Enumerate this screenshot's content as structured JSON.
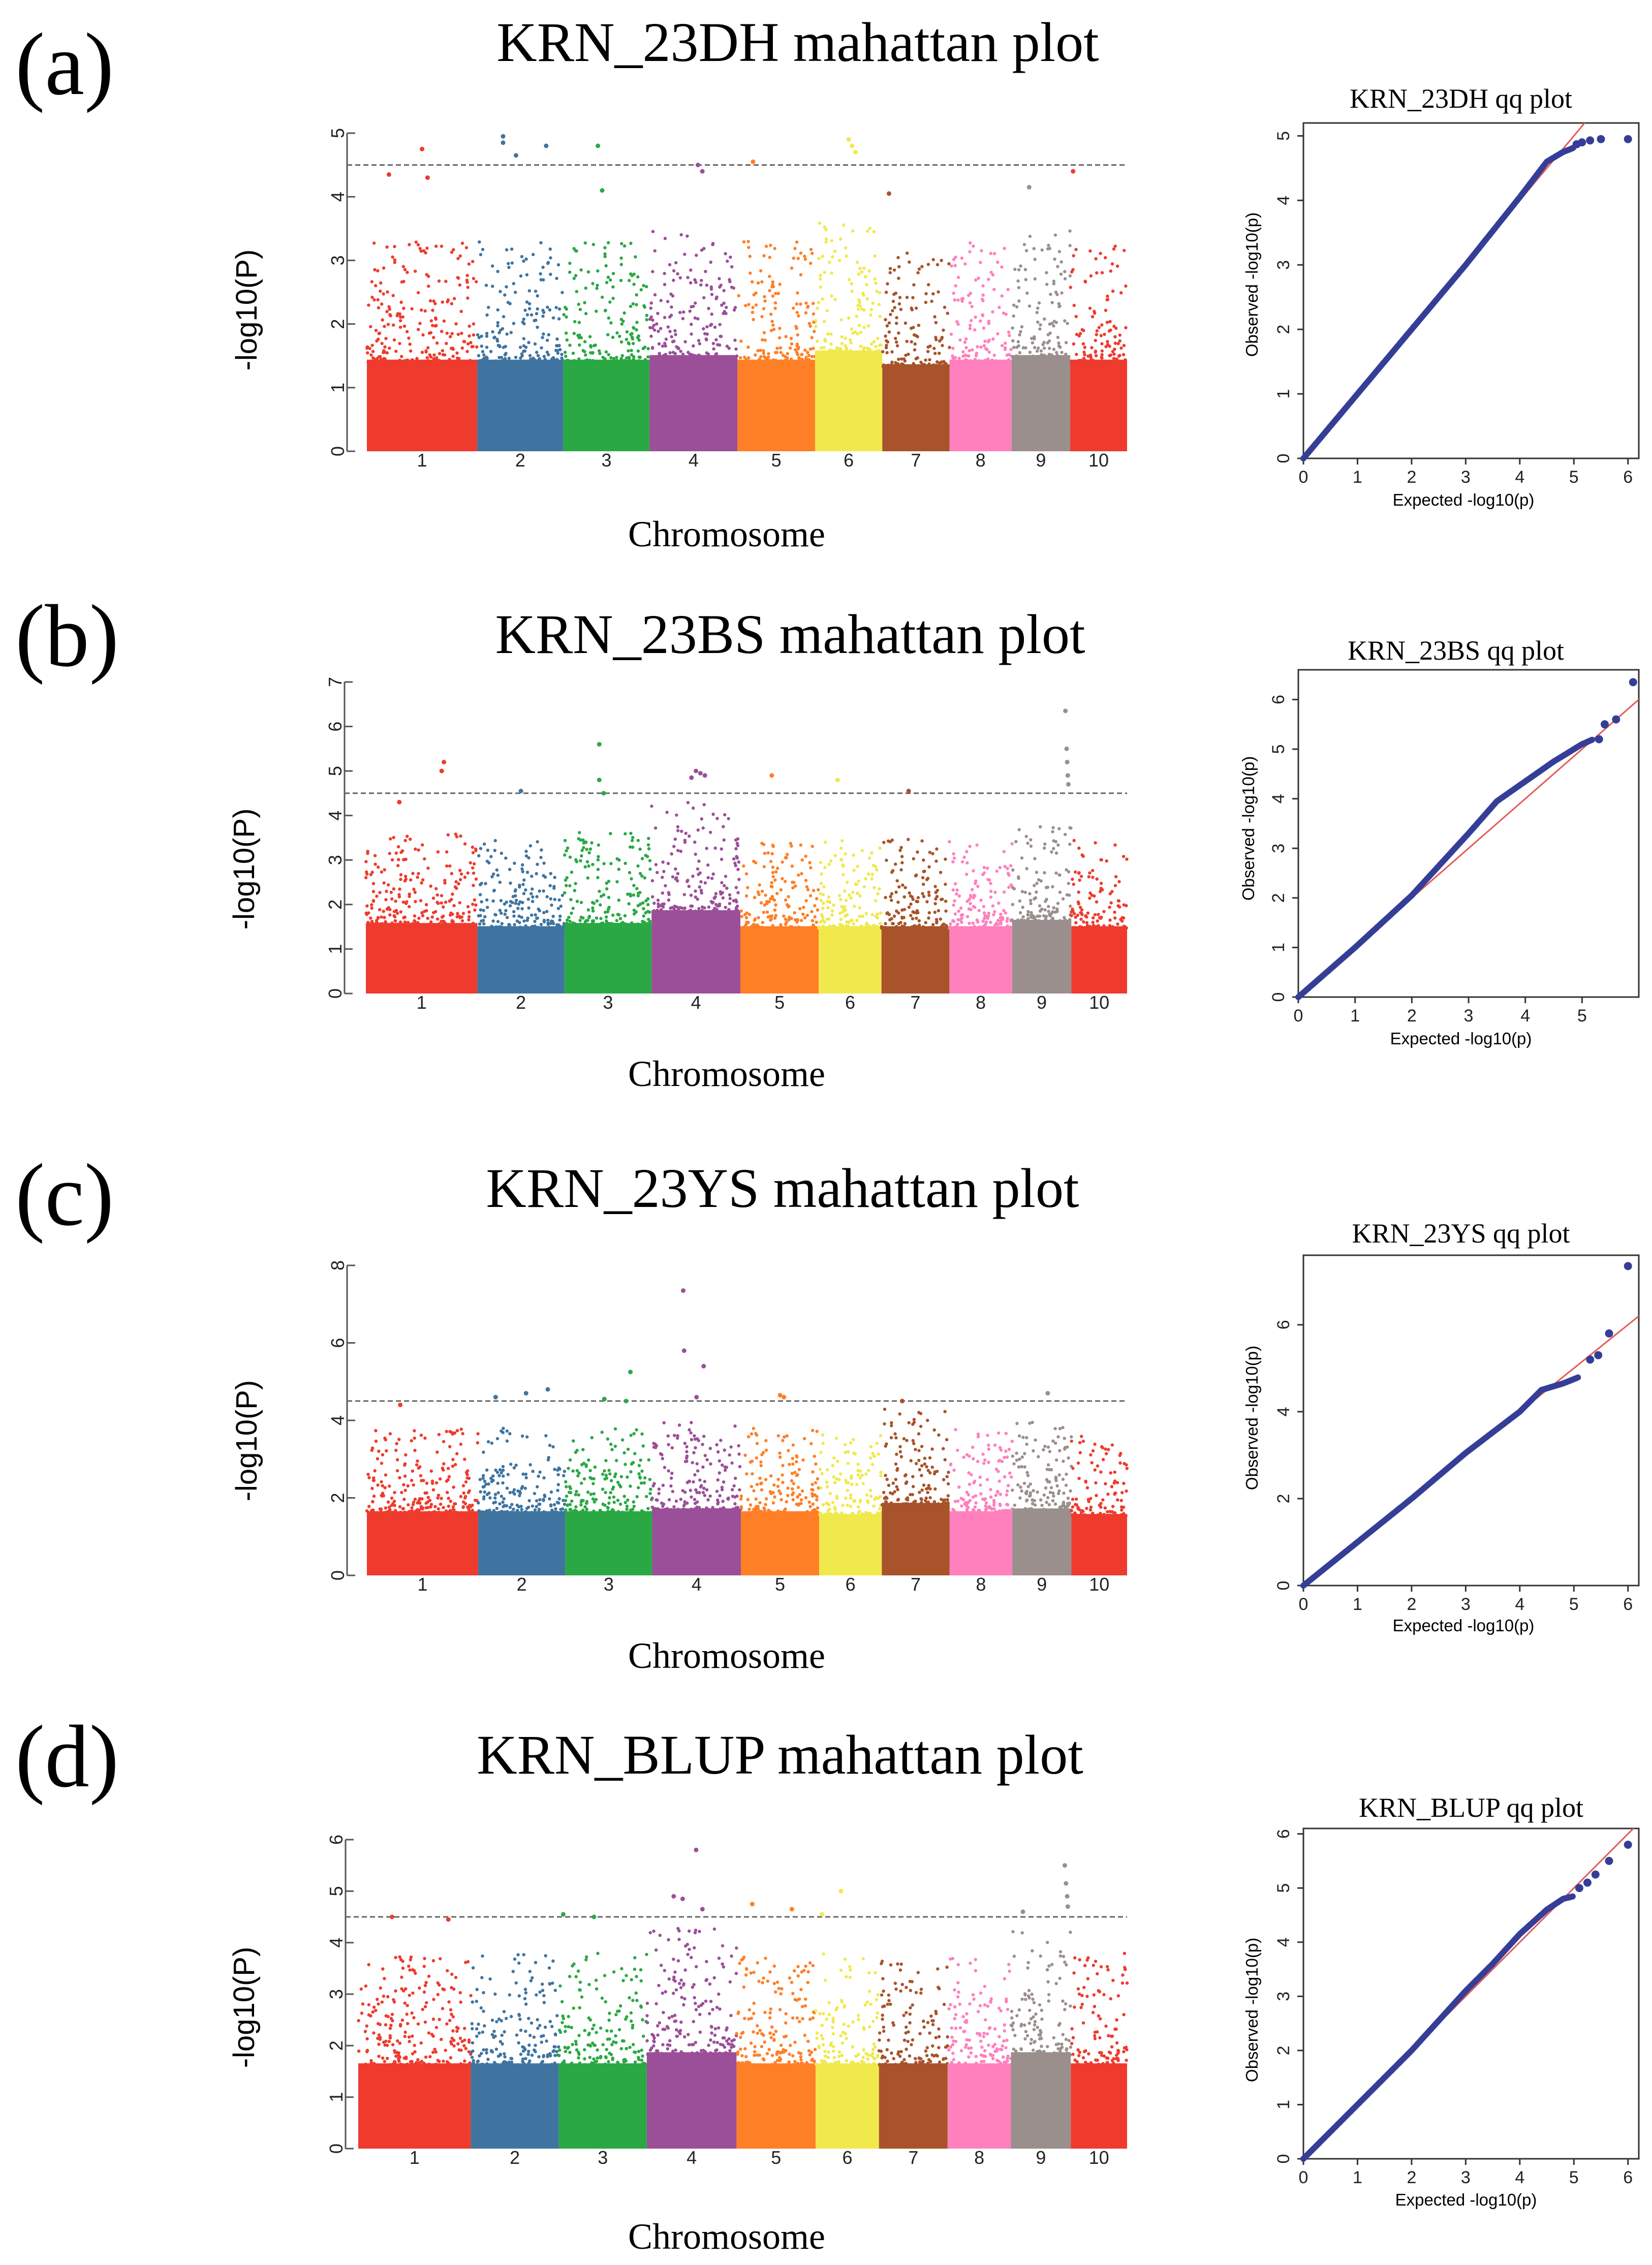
{
  "figure": {
    "panel_labels": [
      "(a)",
      "(b)",
      "(c)",
      "(d)"
    ],
    "threshold": 4.5
  },
  "colors": {
    "chromosomes": [
      "#ee3b2e",
      "#3f74a0",
      "#2aa844",
      "#9b4f98",
      "#ff7f27",
      "#f0e94c",
      "#a8532a",
      "#ff80bd",
      "#9b8f8e",
      "#ee3b2e"
    ],
    "qq_point": "#353e97",
    "qq_line": "#e35a5a",
    "threshold_line": "#666666",
    "axis": "#555555"
  },
  "chart_data": [
    {
      "type": "scatter",
      "id": "a-manhattan",
      "title": "KRN_23DH mahattan plot",
      "xlabel": "Chromosome",
      "ylabel": "-log10(P)",
      "categories": [
        "1",
        "2",
        "3",
        "4",
        "5",
        "6",
        "7",
        "8",
        "9",
        "10"
      ],
      "chrom_widths": [
        1.28,
        1.0,
        1.0,
        1.02,
        0.9,
        0.78,
        0.78,
        0.72,
        0.68,
        0.66
      ],
      "ylim": [
        0,
        5
      ],
      "yticks": [
        0,
        1,
        2,
        3,
        4,
        5
      ],
      "threshold": 4.5,
      "bulk_top": [
        2.0,
        2.0,
        2.0,
        2.1,
        2.0,
        2.2,
        1.9,
        2.0,
        2.1,
        2.0
      ],
      "peaks": [
        {
          "chr": "1",
          "pos": 0.5,
          "value": 4.75
        },
        {
          "chr": "1",
          "pos": 0.2,
          "value": 4.35
        },
        {
          "chr": "1",
          "pos": 0.55,
          "value": 4.3
        },
        {
          "chr": "2",
          "pos": 0.3,
          "value": 4.95
        },
        {
          "chr": "2",
          "pos": 0.3,
          "value": 4.85
        },
        {
          "chr": "2",
          "pos": 0.45,
          "value": 4.65
        },
        {
          "chr": "2",
          "pos": 0.8,
          "value": 4.8
        },
        {
          "chr": "3",
          "pos": 0.4,
          "value": 4.8
        },
        {
          "chr": "3",
          "pos": 0.45,
          "value": 4.1
        },
        {
          "chr": "4",
          "pos": 0.55,
          "value": 4.5
        },
        {
          "chr": "4",
          "pos": 0.6,
          "value": 4.4
        },
        {
          "chr": "5",
          "pos": 0.2,
          "value": 4.55
        },
        {
          "chr": "6",
          "pos": 0.5,
          "value": 4.9
        },
        {
          "chr": "6",
          "pos": 0.55,
          "value": 4.8
        },
        {
          "chr": "6",
          "pos": 0.6,
          "value": 4.7
        },
        {
          "chr": "7",
          "pos": 0.1,
          "value": 4.05
        },
        {
          "chr": "9",
          "pos": 0.3,
          "value": 4.15
        },
        {
          "chr": "10",
          "pos": 0.05,
          "value": 4.4
        }
      ]
    },
    {
      "type": "scatter",
      "id": "a-qq",
      "title": "KRN_23DH qq plot",
      "xlabel": "Expected -log10(p)",
      "ylabel": "Observed -log10(p)",
      "xlim": [
        0,
        6.2
      ],
      "ylim": [
        0,
        5.2
      ],
      "xticks": [
        0,
        1,
        2,
        3,
        4,
        5,
        6
      ],
      "yticks": [
        0,
        1,
        2,
        3,
        4,
        5
      ],
      "curve": [
        [
          0,
          0
        ],
        [
          1,
          1
        ],
        [
          2,
          2
        ],
        [
          3,
          3
        ],
        [
          4,
          4.05
        ],
        [
          4.5,
          4.6
        ],
        [
          4.8,
          4.75
        ],
        [
          4.95,
          4.8
        ],
        [
          5.0,
          4.82
        ]
      ],
      "tail_points": [
        [
          5.05,
          4.87
        ],
        [
          5.15,
          4.9
        ],
        [
          5.3,
          4.93
        ],
        [
          5.5,
          4.95
        ],
        [
          6.0,
          4.95
        ]
      ]
    },
    {
      "type": "scatter",
      "id": "b-manhattan",
      "title": "KRN_23BS mahattan plot",
      "xlabel": "Chromosome",
      "ylabel": "-log10(P)",
      "categories": [
        "1",
        "2",
        "3",
        "4",
        "5",
        "6",
        "7",
        "8",
        "9",
        "10"
      ],
      "chrom_widths": [
        1.28,
        1.0,
        1.0,
        1.02,
        0.9,
        0.72,
        0.78,
        0.72,
        0.68,
        0.64
      ],
      "ylim": [
        0,
        7
      ],
      "yticks": [
        0,
        1,
        2,
        3,
        4,
        5,
        6,
        7
      ],
      "threshold": 4.5,
      "bulk_top": [
        2.2,
        2.1,
        2.2,
        2.6,
        2.1,
        2.1,
        2.1,
        2.1,
        2.3,
        2.1
      ],
      "peaks": [
        {
          "chr": "1",
          "pos": 0.7,
          "value": 5.2
        },
        {
          "chr": "1",
          "pos": 0.68,
          "value": 5.0
        },
        {
          "chr": "1",
          "pos": 0.3,
          "value": 4.3
        },
        {
          "chr": "2",
          "pos": 0.5,
          "value": 4.55
        },
        {
          "chr": "3",
          "pos": 0.4,
          "value": 5.6
        },
        {
          "chr": "3",
          "pos": 0.4,
          "value": 4.8
        },
        {
          "chr": "3",
          "pos": 0.45,
          "value": 4.5
        },
        {
          "chr": "4",
          "pos": 0.5,
          "value": 5.0
        },
        {
          "chr": "4",
          "pos": 0.55,
          "value": 4.95
        },
        {
          "chr": "4",
          "pos": 0.6,
          "value": 4.9
        },
        {
          "chr": "4",
          "pos": 0.45,
          "value": 4.85
        },
        {
          "chr": "5",
          "pos": 0.4,
          "value": 4.9
        },
        {
          "chr": "6",
          "pos": 0.3,
          "value": 4.8
        },
        {
          "chr": "7",
          "pos": 0.4,
          "value": 4.55
        },
        {
          "chr": "9",
          "pos": 0.9,
          "value": 6.35
        },
        {
          "chr": "9",
          "pos": 0.92,
          "value": 5.5
        },
        {
          "chr": "9",
          "pos": 0.93,
          "value": 5.2
        },
        {
          "chr": "9",
          "pos": 0.94,
          "value": 4.9
        },
        {
          "chr": "9",
          "pos": 0.95,
          "value": 4.7
        }
      ]
    },
    {
      "type": "scatter",
      "id": "b-qq",
      "title": "KRN_23BS qq plot",
      "xlabel": "Expected -log10(p)",
      "ylabel": "Observed -log10(p)",
      "xlim": [
        0,
        6
      ],
      "ylim": [
        0,
        6.6
      ],
      "xticks": [
        0,
        1,
        2,
        3,
        4,
        5
      ],
      "yticks": [
        0,
        1,
        2,
        3,
        4,
        5,
        6
      ],
      "curve": [
        [
          0,
          0
        ],
        [
          1,
          1
        ],
        [
          2,
          2.05
        ],
        [
          3,
          3.3
        ],
        [
          3.5,
          3.95
        ],
        [
          4,
          4.35
        ],
        [
          4.5,
          4.75
        ],
        [
          5,
          5.1
        ],
        [
          5.2,
          5.2
        ]
      ],
      "tail_points": [
        [
          5.3,
          5.2
        ],
        [
          5.4,
          5.5
        ],
        [
          5.6,
          5.6
        ],
        [
          5.9,
          6.35
        ]
      ]
    },
    {
      "type": "scatter",
      "id": "c-manhattan",
      "title": "KRN_23YS mahattan plot",
      "xlabel": "Chromosome",
      "ylabel": "-log10(P)",
      "categories": [
        "1",
        "2",
        "3",
        "4",
        "5",
        "6",
        "7",
        "8",
        "9",
        "10"
      ],
      "chrom_widths": [
        1.28,
        1.0,
        1.0,
        1.02,
        0.9,
        0.72,
        0.78,
        0.72,
        0.68,
        0.64
      ],
      "ylim": [
        0,
        8
      ],
      "yticks": [
        0,
        2,
        4,
        6,
        8
      ],
      "threshold": 4.5,
      "bulk_top": [
        2.3,
        2.3,
        2.3,
        2.4,
        2.3,
        2.2,
        2.6,
        2.3,
        2.4,
        2.2
      ],
      "peaks": [
        {
          "chr": "1",
          "pos": 0.3,
          "value": 4.4
        },
        {
          "chr": "2",
          "pos": 0.2,
          "value": 4.6
        },
        {
          "chr": "2",
          "pos": 0.55,
          "value": 4.7
        },
        {
          "chr": "2",
          "pos": 0.8,
          "value": 4.8
        },
        {
          "chr": "3",
          "pos": 0.45,
          "value": 4.55
        },
        {
          "chr": "3",
          "pos": 0.7,
          "value": 4.5
        },
        {
          "chr": "3",
          "pos": 0.75,
          "value": 5.25
        },
        {
          "chr": "4",
          "pos": 0.35,
          "value": 7.35
        },
        {
          "chr": "4",
          "pos": 0.36,
          "value": 5.8
        },
        {
          "chr": "4",
          "pos": 0.5,
          "value": 4.6
        },
        {
          "chr": "4",
          "pos": 0.58,
          "value": 5.4
        },
        {
          "chr": "5",
          "pos": 0.5,
          "value": 4.65
        },
        {
          "chr": "5",
          "pos": 0.55,
          "value": 4.6
        },
        {
          "chr": "7",
          "pos": 0.3,
          "value": 4.5
        },
        {
          "chr": "9",
          "pos": 0.6,
          "value": 4.7
        }
      ]
    },
    {
      "type": "scatter",
      "id": "c-qq",
      "title": "KRN_23YS qq plot",
      "xlabel": "Expected -log10(p)",
      "ylabel": "Observed -log10(p)",
      "xlim": [
        0,
        6.2
      ],
      "ylim": [
        0,
        7.6
      ],
      "xticks": [
        0,
        1,
        2,
        3,
        4,
        5,
        6
      ],
      "yticks": [
        0,
        2,
        4,
        6
      ],
      "curve": [
        [
          0,
          0
        ],
        [
          1,
          1
        ],
        [
          2,
          2
        ],
        [
          3,
          3.05
        ],
        [
          4,
          4.0
        ],
        [
          4.4,
          4.5
        ],
        [
          4.8,
          4.65
        ],
        [
          5.0,
          4.75
        ],
        [
          5.1,
          4.8
        ]
      ],
      "tail_points": [
        [
          5.3,
          5.2
        ],
        [
          5.45,
          5.3
        ],
        [
          5.65,
          5.8
        ],
        [
          6.0,
          7.35
        ]
      ]
    },
    {
      "type": "scatter",
      "id": "d-manhattan",
      "title": "KRN_BLUP mahattan plot",
      "xlabel": "Chromosome",
      "ylabel": "-log10(P)",
      "categories": [
        "1",
        "2",
        "3",
        "4",
        "5",
        "6",
        "7",
        "8",
        "9",
        "10"
      ],
      "chrom_widths": [
        1.28,
        1.0,
        1.0,
        1.02,
        0.9,
        0.72,
        0.78,
        0.72,
        0.68,
        0.64
      ],
      "ylim": [
        0,
        6
      ],
      "yticks": [
        0,
        1,
        2,
        3,
        4,
        5,
        6
      ],
      "threshold": 4.5,
      "bulk_top": [
        2.3,
        2.3,
        2.3,
        2.6,
        2.3,
        2.3,
        2.3,
        2.3,
        2.6,
        2.3
      ],
      "peaks": [
        {
          "chr": "1",
          "pos": 0.3,
          "value": 4.5
        },
        {
          "chr": "1",
          "pos": 0.8,
          "value": 4.45
        },
        {
          "chr": "3",
          "pos": 0.05,
          "value": 4.55
        },
        {
          "chr": "3",
          "pos": 0.4,
          "value": 4.5
        },
        {
          "chr": "4",
          "pos": 0.3,
          "value": 4.9
        },
        {
          "chr": "4",
          "pos": 0.4,
          "value": 4.85
        },
        {
          "chr": "4",
          "pos": 0.55,
          "value": 5.8
        },
        {
          "chr": "4",
          "pos": 0.62,
          "value": 4.65
        },
        {
          "chr": "5",
          "pos": 0.2,
          "value": 4.75
        },
        {
          "chr": "5",
          "pos": 0.7,
          "value": 4.65
        },
        {
          "chr": "6",
          "pos": 0.4,
          "value": 5.0
        },
        {
          "chr": "6",
          "pos": 0.1,
          "value": 4.55
        },
        {
          "chr": "9",
          "pos": 0.2,
          "value": 4.6
        },
        {
          "chr": "9",
          "pos": 0.9,
          "value": 5.5
        },
        {
          "chr": "9",
          "pos": 0.92,
          "value": 5.15
        },
        {
          "chr": "9",
          "pos": 0.94,
          "value": 4.9
        },
        {
          "chr": "9",
          "pos": 0.95,
          "value": 4.7
        }
      ]
    },
    {
      "type": "scatter",
      "id": "d-qq",
      "title": "KRN_BLUP qq plot",
      "xlabel": "Expected -log10(p)",
      "ylabel": "Observed -log10(p)",
      "xlim": [
        0,
        6.2
      ],
      "ylim": [
        0,
        6.1
      ],
      "xticks": [
        0,
        1,
        2,
        3,
        4,
        5,
        6
      ],
      "yticks": [
        0,
        1,
        2,
        3,
        4,
        5,
        6
      ],
      "curve": [
        [
          0,
          0
        ],
        [
          1,
          1
        ],
        [
          2,
          2
        ],
        [
          3,
          3.1
        ],
        [
          3.5,
          3.6
        ],
        [
          4,
          4.15
        ],
        [
          4.5,
          4.6
        ],
        [
          4.8,
          4.8
        ],
        [
          5,
          4.85
        ]
      ],
      "tail_points": [
        [
          5.1,
          5.0
        ],
        [
          5.25,
          5.1
        ],
        [
          5.4,
          5.25
        ],
        [
          5.65,
          5.5
        ],
        [
          6.0,
          5.8
        ]
      ]
    }
  ]
}
